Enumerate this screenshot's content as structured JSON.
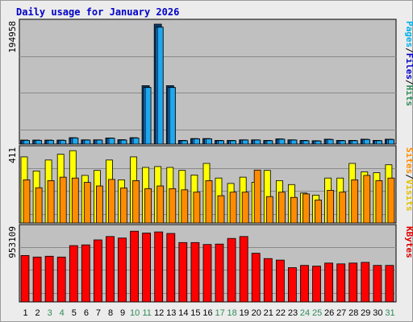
{
  "chart_data": {
    "type": "bar",
    "title": "Daily usage for January 2026",
    "categories": [
      "1",
      "2",
      "3",
      "4",
      "5",
      "6",
      "7",
      "8",
      "9",
      "10",
      "11",
      "12",
      "13",
      "14",
      "15",
      "16",
      "17",
      "18",
      "19",
      "20",
      "21",
      "22",
      "23",
      "24",
      "25",
      "26",
      "27",
      "28",
      "29",
      "30",
      "31"
    ],
    "weekend_days": [
      "3",
      "4",
      "10",
      "11",
      "17",
      "18",
      "24",
      "25",
      "31"
    ],
    "panels": [
      {
        "id": "hits",
        "max_label": "194958",
        "ymax": 194958,
        "legend": [
          {
            "text": "Pages",
            "color": "#00b0e8"
          },
          {
            "text": "/",
            "color": "#000000"
          },
          {
            "text": "Files",
            "color": "#0000c8"
          },
          {
            "text": "/",
            "color": "#000000"
          },
          {
            "text": "Hits",
            "color": "#2e8b57"
          }
        ],
        "series": [
          {
            "name": "Hits",
            "color": "#0a3d6b",
            "values": [
              6500,
              6600,
              6600,
              6600,
              10500,
              7000,
              7000,
              10000,
              7200,
              10500,
              95000,
              194958,
              95000,
              6000,
              9000,
              9000,
              6000,
              6000,
              7000,
              7000,
              6000,
              8500,
              7000,
              6000,
              5500,
              8000,
              6000,
              6000,
              8000,
              6000,
              8000
            ]
          },
          {
            "name": "Files",
            "color": "#1e90ff",
            "values": [
              6000,
              6000,
              6000,
              6000,
              10000,
              6500,
              6500,
              9500,
              6500,
              10000,
              92000,
              190000,
              92000,
              5500,
              8500,
              8500,
              5500,
              5500,
              6500,
              6500,
              5500,
              8000,
              6500,
              5500,
              5000,
              7500,
              5500,
              5500,
              7500,
              5500,
              7500
            ]
          },
          {
            "name": "Pages",
            "color": "#1ea8ef",
            "values": [
              6000,
              6000,
              6000,
              6000,
              10000,
              6500,
              6500,
              9500,
              6500,
              10000,
              92000,
              190000,
              92000,
              5500,
              8500,
              8500,
              5500,
              5500,
              6500,
              6500,
              5500,
              8000,
              6500,
              5500,
              5000,
              7500,
              5500,
              5500,
              7500,
              5500,
              7500
            ]
          }
        ]
      },
      {
        "id": "visits",
        "max_label": "411",
        "ymax": 411,
        "legend": [
          {
            "text": "Sites",
            "color": "#ff8c00"
          },
          {
            "text": "/",
            "color": "#000000"
          },
          {
            "text": "Visits",
            "color": "#e0c000"
          }
        ],
        "series": [
          {
            "name": "Visits",
            "color": "#ffff00",
            "values": [
              375,
              295,
              357,
              390,
              410,
              270,
              298,
              357,
              245,
              375,
              315,
              320,
              315,
              298,
              272,
              338,
              255,
              224,
              260,
              231,
              298,
              240,
              218,
              170,
              158,
              255,
              255,
              338,
              290,
              285,
              330
            ]
          },
          {
            "name": "Sites",
            "color": "#ff8c00",
            "values": [
              245,
              200,
              240,
              260,
              255,
              230,
              210,
              247,
              198,
              240,
              195,
              210,
              195,
              188,
              175,
              240,
              155,
              175,
              175,
              300,
              150,
              175,
              145,
              165,
              130,
              185,
              175,
              245,
              270,
              240,
              255
            ]
          }
        ]
      },
      {
        "id": "kbytes",
        "max_label": "953109",
        "ymax": 953109,
        "legend": [
          {
            "text": "KBytes",
            "color": "#dd0000"
          }
        ],
        "series": [
          {
            "name": "KBytes",
            "color": "#ff0000",
            "values": [
              610000,
              590000,
              600000,
              590000,
              740000,
              750000,
              815000,
              860000,
              840000,
              930000,
              905000,
              920000,
              900000,
              780000,
              780000,
              755000,
              760000,
              835000,
              860000,
              640000,
              570000,
              550000,
              450000,
              480000,
              470000,
              510000,
              500000,
              510000,
              520000,
              480000,
              480000
            ]
          }
        ]
      }
    ],
    "grid": true
  }
}
